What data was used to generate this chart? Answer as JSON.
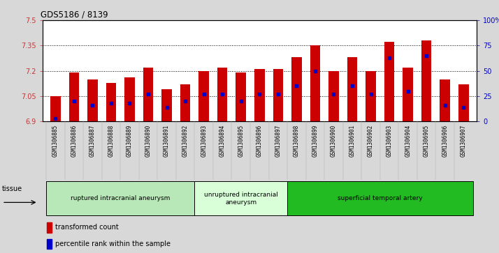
{
  "title": "GDS5186 / 8139",
  "samples": [
    "GSM1306885",
    "GSM1306886",
    "GSM1306887",
    "GSM1306888",
    "GSM1306889",
    "GSM1306890",
    "GSM1306891",
    "GSM1306892",
    "GSM1306893",
    "GSM1306894",
    "GSM1306895",
    "GSM1306896",
    "GSM1306897",
    "GSM1306898",
    "GSM1306899",
    "GSM1306900",
    "GSM1306901",
    "GSM1306902",
    "GSM1306903",
    "GSM1306904",
    "GSM1306905",
    "GSM1306906",
    "GSM1306907"
  ],
  "bar_values": [
    7.05,
    7.19,
    7.15,
    7.13,
    7.16,
    7.22,
    7.09,
    7.12,
    7.2,
    7.22,
    7.19,
    7.21,
    7.21,
    7.28,
    7.35,
    7.2,
    7.28,
    7.2,
    7.37,
    7.22,
    7.38,
    7.15,
    7.12
  ],
  "percentile_values": [
    3,
    20,
    16,
    18,
    18,
    27,
    14,
    20,
    27,
    27,
    20,
    27,
    27,
    35,
    50,
    27,
    35,
    27,
    63,
    30,
    65,
    16,
    14
  ],
  "ymin": 6.9,
  "ymax": 7.5,
  "yticks": [
    6.9,
    7.05,
    7.2,
    7.35,
    7.5
  ],
  "ytick_labels": [
    "6.9",
    "7.05",
    "7.2",
    "7.35",
    "7.5"
  ],
  "right_yticks": [
    0,
    25,
    50,
    75,
    100
  ],
  "right_ytick_labels": [
    "0",
    "25",
    "50",
    "75",
    "100%"
  ],
  "bar_color": "#cc0000",
  "dot_color": "#0000cc",
  "bg_color": "#d8d8d8",
  "plot_bg_color": "#ffffff",
  "groups": [
    {
      "label": "ruptured intracranial aneurysm",
      "start": 0,
      "end": 8,
      "color": "#b8e8b8"
    },
    {
      "label": "unruptured intracranial\naneurysm",
      "start": 8,
      "end": 13,
      "color": "#d8ffd8"
    },
    {
      "label": "superficial temporal artery",
      "start": 13,
      "end": 23,
      "color": "#22bb22"
    }
  ],
  "legend_items": [
    {
      "label": "transformed count",
      "color": "#cc0000"
    },
    {
      "label": "percentile rank within the sample",
      "color": "#0000cc"
    }
  ],
  "tissue_label": "tissue",
  "left_axis_color": "#cc3333",
  "right_axis_color": "#0000cc"
}
